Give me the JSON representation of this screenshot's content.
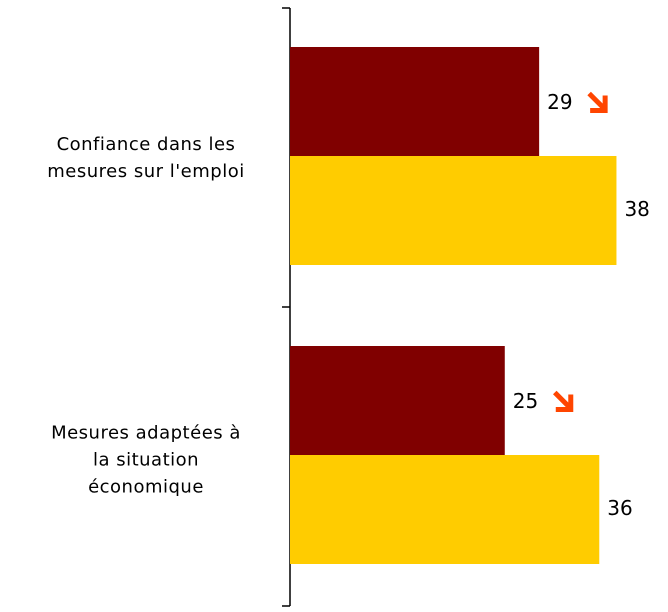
{
  "chart_data": {
    "type": "bar",
    "orientation": "horizontal",
    "categories": [
      "Confiance dans les mesures sur l'emploi",
      "Mesures adaptées à la situation économique"
    ],
    "series": [
      {
        "color": "#800000",
        "values": [
          29,
          25
        ]
      },
      {
        "color": "#ffcc00",
        "values": [
          38,
          36
        ]
      }
    ],
    "xlim": [
      0,
      44
    ]
  }
}
